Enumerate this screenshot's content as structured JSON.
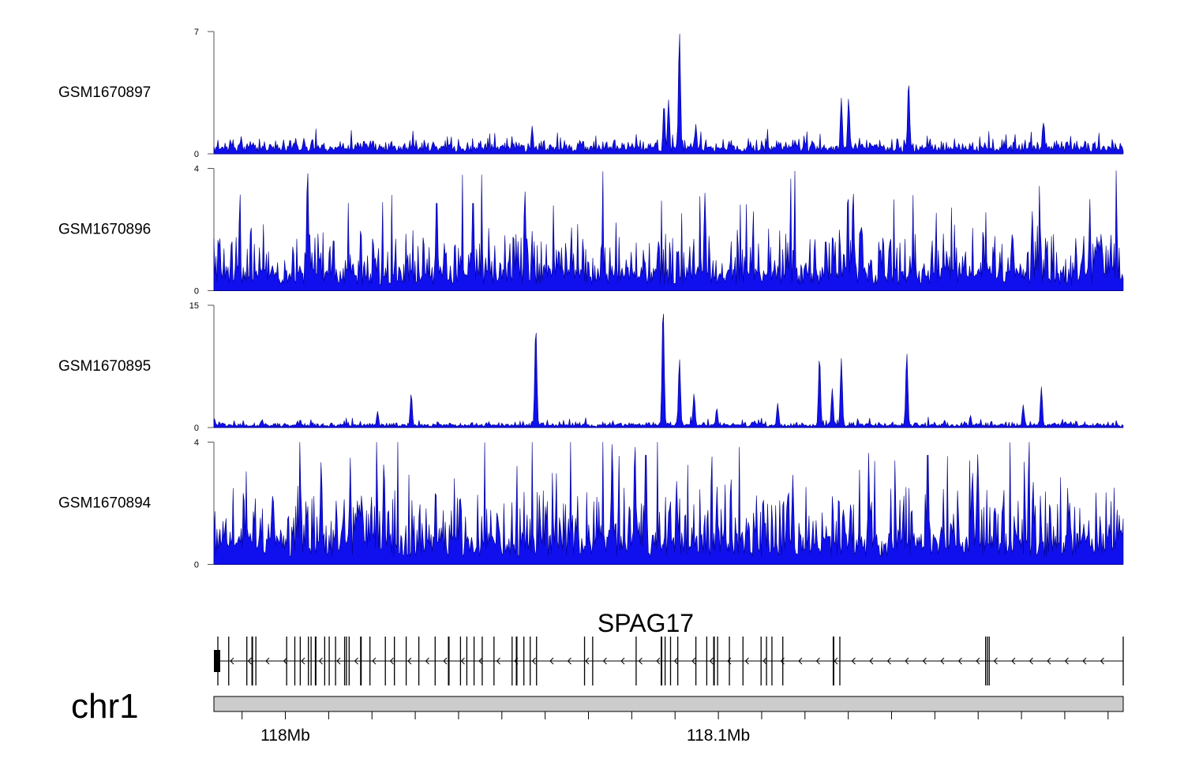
{
  "chart_data": {
    "type": "area",
    "title": "",
    "chromosome": "chr1",
    "region_mb": [
      117.9835,
      118.1935
    ],
    "colors": {
      "signal_fill": "#1010ee",
      "signal_stroke": "#00008b",
      "ideogram": "#cccccc",
      "axis": "#000000"
    },
    "tracks": [
      {
        "name": "GSM1670897",
        "ylim": [
          0,
          7
        ],
        "tick_labels": [
          "0",
          "7"
        ],
        "baseline": 0.35,
        "noise": 0.5,
        "seed": 11,
        "peaks": [
          [
            0.03,
            1.0
          ],
          [
            0.09,
            0.9
          ],
          [
            0.165,
            0.8
          ],
          [
            0.35,
            1.6
          ],
          [
            0.495,
            2.9
          ],
          [
            0.5,
            3.1
          ],
          [
            0.512,
            7.0
          ],
          [
            0.53,
            1.7
          ],
          [
            0.69,
            3.2
          ],
          [
            0.698,
            3.2
          ],
          [
            0.764,
            4.2
          ],
          [
            0.912,
            1.8
          ]
        ]
      },
      {
        "name": "GSM1670896",
        "ylim": [
          0,
          4
        ],
        "tick_labels": [
          "0",
          "4"
        ],
        "baseline": 0.6,
        "noise": 1.4,
        "seed": 23,
        "peaks": [
          [
            0.103,
            4.0
          ],
          [
            0.245,
            3.2
          ],
          [
            0.285,
            3.2
          ],
          [
            0.342,
            3.3
          ],
          [
            0.54,
            3.2
          ],
          [
            0.703,
            3.3
          ],
          [
            0.9,
            2.6
          ]
        ]
      },
      {
        "name": "GSM1670895",
        "ylim": [
          0,
          15
        ],
        "tick_labels": [
          "0",
          "15"
        ],
        "baseline": 0.3,
        "noise": 0.4,
        "seed": 37,
        "peaks": [
          [
            0.053,
            1.0
          ],
          [
            0.095,
            1.0
          ],
          [
            0.18,
            2.0
          ],
          [
            0.217,
            4.2
          ],
          [
            0.354,
            12.5
          ],
          [
            0.494,
            15.0
          ],
          [
            0.512,
            8.5
          ],
          [
            0.528,
            4.2
          ],
          [
            0.553,
            2.4
          ],
          [
            0.62,
            3.0
          ],
          [
            0.666,
            8.8
          ],
          [
            0.68,
            4.8
          ],
          [
            0.69,
            8.5
          ],
          [
            0.762,
            9.2
          ],
          [
            0.832,
            1.5
          ],
          [
            0.89,
            2.8
          ],
          [
            0.91,
            5.0
          ]
        ]
      },
      {
        "name": "GSM1670894",
        "ylim": [
          0,
          4
        ],
        "tick_labels": [
          "0",
          "4"
        ],
        "baseline": 0.8,
        "noise": 1.6,
        "seed": 41,
        "peaks": [
          [
            0.118,
            3.4
          ],
          [
            0.187,
            3.4
          ],
          [
            0.438,
            4.0
          ],
          [
            0.463,
            4.0
          ],
          [
            0.475,
            4.0
          ],
          [
            0.785,
            4.0
          ],
          [
            0.84,
            3.6
          ]
        ]
      }
    ],
    "gene": {
      "name": "SPAG17",
      "strand": "-",
      "exons": [
        0.0,
        0.012,
        0.032,
        0.038,
        0.042,
        0.076,
        0.085,
        0.091,
        0.1,
        0.103,
        0.108,
        0.118,
        0.123,
        0.13,
        0.14,
        0.142,
        0.145,
        0.158,
        0.168,
        0.185,
        0.195,
        0.208,
        0.222,
        0.24,
        0.255,
        0.268,
        0.275,
        0.283,
        0.292,
        0.305,
        0.325,
        0.33,
        0.338,
        0.345,
        0.352,
        0.405,
        0.414,
        0.462,
        0.49,
        0.494,
        0.5,
        0.508,
        0.528,
        0.54,
        0.552,
        0.548,
        0.565,
        0.58,
        0.6,
        0.606,
        0.612,
        0.624,
        0.68,
        0.687,
        0.848,
        0.85,
        0.852,
        1.0
      ],
      "cds_start": 0.0,
      "cds_end": 0.007
    },
    "xaxis": {
      "tick_positions_mb": [
        117.99,
        118.0,
        118.01,
        118.02,
        118.03,
        118.04,
        118.05,
        118.06,
        118.07,
        118.08,
        118.09,
        118.1,
        118.11,
        118.12,
        118.13,
        118.14,
        118.15,
        118.16,
        118.17,
        118.18,
        118.19
      ],
      "labels": [
        {
          "value_mb": 118.0,
          "text": "118Mb"
        },
        {
          "value_mb": 118.1,
          "text": "118.1Mb"
        }
      ]
    }
  }
}
